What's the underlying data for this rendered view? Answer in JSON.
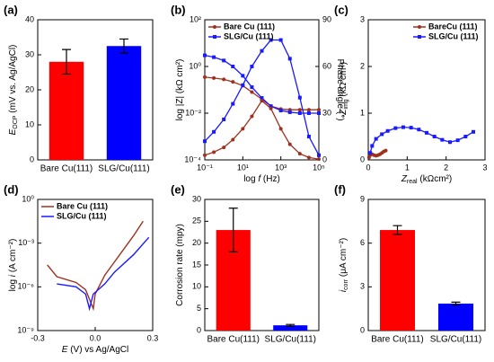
{
  "chart_data": [
    {
      "type": "bar",
      "title": "(a)",
      "ylabel": [
        {
          "text": "E",
          "italic": true
        },
        {
          "text": "OCP",
          "sub": true
        },
        {
          "text": " (mV vs. Ag/AgCl)"
        }
      ],
      "categories": [
        "Bare Cu(111)",
        "SLG/Cu(111)"
      ],
      "values": [
        28,
        32.5
      ],
      "errors": [
        3.5,
        2
      ],
      "colors": [
        "#ff0000",
        "#0000ff"
      ],
      "ylim": [
        0,
        40
      ],
      "yticks": [
        0,
        10,
        20,
        30,
        40
      ]
    },
    {
      "type": "line",
      "title": "(b)",
      "xlabel": [
        {
          "text": "log "
        },
        {
          "text": "f",
          "italic": true
        },
        {
          "text": " (Hz)"
        }
      ],
      "ylabel": [
        {
          "text": "log |Z| (kΩ cm²)"
        }
      ],
      "y2label": [
        {
          "text": "Phase angle (°)"
        }
      ],
      "xlog": true,
      "ylog": true,
      "legend": "upper left",
      "xlim": [
        0.1,
        100000
      ],
      "xticks": [
        {
          "value": 0.1,
          "label": "10⁻¹"
        },
        {
          "value": 10,
          "label": "10¹"
        },
        {
          "value": 1000,
          "label": "10³"
        },
        {
          "value": 100000,
          "label": "10⁵"
        }
      ],
      "ylim": [
        0.0001,
        100
      ],
      "yticks": [
        {
          "value": 0.0001,
          "label": "10⁻⁴"
        },
        {
          "value": 0.01,
          "label": "10⁻²"
        },
        {
          "value": 1,
          "label": "10⁰"
        },
        {
          "value": 100,
          "label": "10²"
        }
      ],
      "y2lim": [
        0,
        90
      ],
      "y2ticks": [
        0,
        30,
        60,
        90
      ],
      "series": [
        {
          "name": "Bare Cu (111)",
          "color": "#a0301e",
          "marker": "circle",
          "x": [
            0.1,
            0.3,
            1,
            3,
            10,
            30,
            100,
            300,
            1000,
            3000,
            10000,
            30000,
            100000
          ],
          "values": [
            0.35,
            0.32,
            0.28,
            0.22,
            0.15,
            0.08,
            0.04,
            0.02,
            0.015,
            0.014,
            0.014,
            0.014,
            0.014
          ]
        },
        {
          "name": "SLG/Cu (111)",
          "color": "#1a1aff",
          "marker": "square",
          "x": [
            0.1,
            0.3,
            1,
            3,
            10,
            30,
            100,
            300,
            1000,
            3000,
            10000,
            30000,
            100000
          ],
          "values": [
            3,
            2.5,
            1.8,
            1,
            0.4,
            0.13,
            0.045,
            0.02,
            0.013,
            0.011,
            0.01,
            0.01,
            0.01
          ]
        },
        {
          "color": "#a0301e",
          "marker": "circle",
          "axis": "y2",
          "x": [
            0.1,
            0.3,
            1,
            3,
            10,
            30,
            100,
            300,
            1000,
            3000,
            10000,
            30000,
            100000
          ],
          "values": [
            3,
            5,
            8,
            13,
            20,
            28,
            38,
            33,
            20,
            10,
            4,
            1.5,
            0.5
          ]
        },
        {
          "color": "#1a1aff",
          "marker": "square",
          "axis": "y2",
          "x": [
            0.1,
            0.3,
            1,
            3,
            10,
            30,
            100,
            300,
            1000,
            3000,
            10000,
            30000,
            100000
          ],
          "values": [
            12,
            18,
            26,
            36,
            48,
            60,
            70,
            77,
            77,
            65,
            40,
            15,
            3
          ]
        }
      ]
    },
    {
      "type": "line",
      "title": "(c)",
      "xlabel": [
        {
          "text": "Z",
          "italic": true
        },
        {
          "text": "real",
          "sub": true
        },
        {
          "text": " (kΩcm²)"
        }
      ],
      "ylabel": [
        {
          "text": "-Z",
          "italic": true
        },
        {
          "text": "img",
          "sub": true
        },
        {
          "text": " (kΩ cm²)"
        }
      ],
      "legend": "upper right",
      "xlim": [
        0,
        3
      ],
      "xticks": [
        0,
        1,
        2,
        3
      ],
      "ylim": [
        0,
        3
      ],
      "yticks": [
        0,
        1,
        2,
        3
      ],
      "series": [
        {
          "name": "BareCu (111)",
          "color": "#a0301e",
          "marker": "circle",
          "x": [
            0.02,
            0.05,
            0.1,
            0.15,
            0.2,
            0.25,
            0.3,
            0.35,
            0.4,
            0.45
          ],
          "values": [
            0.05,
            0.1,
            0.12,
            0.1,
            0.09,
            0.1,
            0.12,
            0.15,
            0.18,
            0.2
          ]
        },
        {
          "name": "SLG/Cu (111)",
          "color": "#1a1aff",
          "marker": "square",
          "x": [
            0.05,
            0.1,
            0.2,
            0.35,
            0.5,
            0.7,
            0.9,
            1.1,
            1.3,
            1.5,
            1.7,
            1.9,
            2.1,
            2.3,
            2.5,
            2.7
          ],
          "values": [
            0.15,
            0.3,
            0.45,
            0.55,
            0.62,
            0.68,
            0.7,
            0.69,
            0.65,
            0.58,
            0.5,
            0.43,
            0.38,
            0.42,
            0.5,
            0.6
          ]
        }
      ]
    },
    {
      "type": "line",
      "title": "(d)",
      "xlabel": [
        {
          "text": "E",
          "italic": true
        },
        {
          "text": " (V) vs Ag/AgCl"
        }
      ],
      "ylabel": [
        {
          "text": "log "
        },
        {
          "text": "i",
          "italic": true
        },
        {
          "text": " (A cm⁻²)"
        }
      ],
      "ylog": true,
      "legend": "upper left",
      "xlim": [
        -0.3,
        0.3
      ],
      "xticks": [
        -0.3,
        {
          "value": 0,
          "label": "0.0"
        },
        0.3
      ],
      "ylim": [
        1e-09,
        1
      ],
      "yticks": [
        {
          "value": 1e-09,
          "label": "10⁻⁹"
        },
        {
          "value": 1e-06,
          "label": "10⁻⁶"
        },
        {
          "value": 0.001,
          "label": "10⁻³"
        },
        {
          "value": 1,
          "label": "10⁰"
        }
      ],
      "series": [
        {
          "name": "Bare Cu (111)",
          "color": "#a0301e",
          "x": [
            -0.25,
            -0.2,
            -0.1,
            -0.05,
            -0.01,
            0,
            0.05,
            0.1,
            0.2,
            0.25
          ],
          "values": [
            3.2e-05,
            5e-06,
            2e-06,
            6.3e-07,
            3.2e-08,
            3.2e-07,
            6.3e-06,
            5e-05,
            0.0032,
            0.032
          ]
        },
        {
          "name": "SLG/Cu (111)",
          "color": "#1a1aff",
          "x": [
            -0.2,
            -0.1,
            -0.05,
            -0.03,
            -0.01,
            0.05,
            0.1,
            0.2,
            0.28
          ],
          "values": [
            1.6e-06,
            1e-06,
            3.2e-07,
            3.2e-08,
            3.2e-07,
            1.6e-06,
            1e-05,
            0.00016,
            0.0025
          ]
        }
      ]
    },
    {
      "type": "bar",
      "title": "(e)",
      "ylabel": [
        {
          "text": "Corrosion rate (mpy)"
        }
      ],
      "categories": [
        "Bare Cu(111)",
        "SLG/Cu(111)"
      ],
      "values": [
        23,
        1.2
      ],
      "errors": [
        5,
        0.2
      ],
      "colors": [
        "#ff0000",
        "#0000ff"
      ],
      "ylim": [
        0,
        30
      ],
      "yticks": [
        0,
        5,
        10,
        15,
        20,
        25,
        30
      ]
    },
    {
      "type": "bar",
      "title": "(f)",
      "ylabel": [
        {
          "text": "i",
          "italic": true
        },
        {
          "text": "corr",
          "sub": true
        },
        {
          "text": " (μA cm⁻²)"
        }
      ],
      "categories": [
        "Bare Cu(111)",
        "SLG/Cu(111)"
      ],
      "values": [
        6.9,
        1.85
      ],
      "errors": [
        0.3,
        0.1
      ],
      "colors": [
        "#ff0000",
        "#0000ff"
      ],
      "ylim": [
        0,
        9
      ],
      "yticks": [
        0,
        3,
        6,
        9
      ]
    }
  ]
}
